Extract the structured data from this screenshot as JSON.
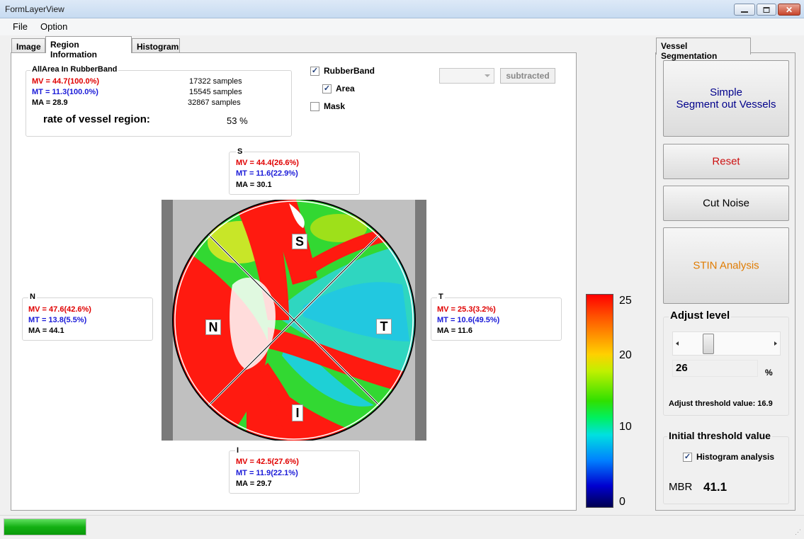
{
  "window": {
    "title": "FormLayerView"
  },
  "menu": {
    "items": [
      "File",
      "Option"
    ]
  },
  "tabs": [
    "Image",
    "Region Information",
    "Histogram"
  ],
  "allarea": {
    "title": "AllArea In RubberBand",
    "mv": "MV = 44.7(100.0%)",
    "mt": "MT = 11.3(100.0%)",
    "ma": "MA = 28.9",
    "mv_samples": "17322 samples",
    "mt_samples": "15545 samples",
    "ma_samples": "32867 samples",
    "rate_label": "rate of vessel region:",
    "rate_value": "53 %"
  },
  "checkboxes": {
    "rubberband": {
      "label": "RubberBand",
      "checked": true
    },
    "area": {
      "label": "Area",
      "checked": true
    },
    "mask": {
      "label": "Mask",
      "checked": false
    }
  },
  "subtract_button": "subtracted",
  "regions": {
    "S": {
      "title": "S",
      "mv": "MV = 44.4(26.6%)",
      "mt": "MT = 11.6(22.9%)",
      "ma": "MA = 30.1"
    },
    "N": {
      "title": "N",
      "mv": "MV = 47.6(42.6%)",
      "mt": "MT = 13.8(5.5%)",
      "ma": "MA = 44.1"
    },
    "T": {
      "title": "T",
      "mv": "MV = 25.3(3.2%)",
      "mt": "MT = 10.6(49.5%)",
      "ma": "MA = 11.6"
    },
    "I": {
      "title": "I",
      "mv": "MV = 42.5(27.6%)",
      "mt": "MT = 11.9(22.1%)",
      "ma": "MA = 29.7"
    }
  },
  "image_labels": {
    "S": "S",
    "N": "N",
    "T": "T",
    "I": "I"
  },
  "colorbar": {
    "ticks": [
      "25",
      "20",
      "10",
      "0"
    ]
  },
  "right_tab": "Vessel Segmentation",
  "buttons": {
    "segment_line1": "Simple",
    "segment_line2": "Segment out Vessels",
    "reset": "Reset",
    "cut_noise": "Cut Noise",
    "stin": "STIN Analysis"
  },
  "adjust": {
    "title": "Adjust level",
    "value": "26",
    "unit": "%",
    "threshold_text": "Adjust threshold value: 16.9",
    "slider_fraction": 0.26
  },
  "initial": {
    "title": "Initial threshold value",
    "histogram_label": "Histogram analysis",
    "histogram_checked": true,
    "mbr_label": "MBR",
    "mbr_value": "41.1"
  },
  "progress": {
    "fraction": 1.0
  },
  "colors": {
    "red": "#e00000",
    "blue": "#1a1ad8",
    "segment_text": "#00008b",
    "reset_text": "#cc1111",
    "stin_text": "#e07b00"
  }
}
